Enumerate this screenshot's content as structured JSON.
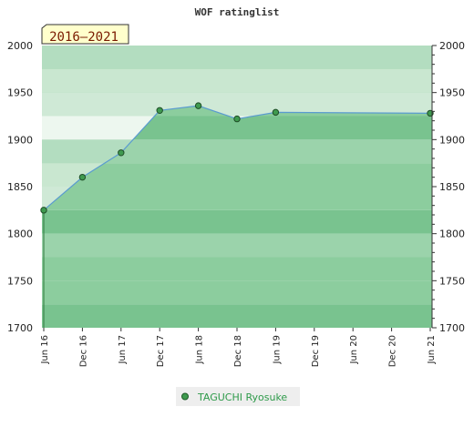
{
  "chart_data": {
    "type": "area",
    "title": "WOF ratinglist",
    "period_label": "2016–2021",
    "categories": [
      "Jun 16",
      "Dec 16",
      "Jun 17",
      "Dec 17",
      "Jun 18",
      "Dec 18",
      "Jun 19",
      "Dec 19",
      "Jun 20",
      "Dec 20",
      "Jun 21"
    ],
    "ylim": [
      1700,
      2000
    ],
    "yticks": [
      1700,
      1750,
      1800,
      1850,
      1900,
      1950,
      2000
    ],
    "grid": true,
    "legend_position": "bottom-center",
    "series": [
      {
        "name": "TAGUCHI Ryosuke",
        "points": [
          {
            "x": "Jun 16",
            "y": 1825
          },
          {
            "x": "Dec 16",
            "y": 1860
          },
          {
            "x": "Jun 17",
            "y": 1886
          },
          {
            "x": "Dec 17",
            "y": 1931
          },
          {
            "x": "Jun 18",
            "y": 1936
          },
          {
            "x": "Dec 18",
            "y": 1922
          },
          {
            "x": "Jun 19",
            "y": 1929
          },
          {
            "x": "Jun 21",
            "y": 1928
          }
        ]
      }
    ]
  },
  "colors": {
    "line": "#5a9bd0",
    "marker": "#3f9a4f",
    "legend_text": "#2e9a4a",
    "period_bg": "#ffffcc"
  }
}
